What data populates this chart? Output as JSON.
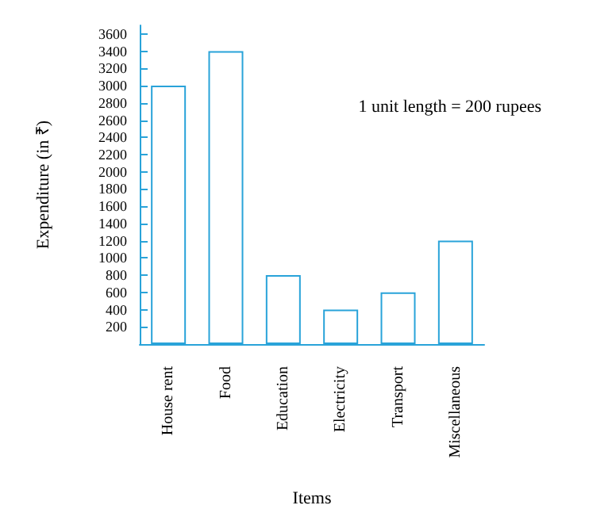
{
  "chart_data": {
    "type": "bar",
    "xlabel": "Items",
    "ylabel": "Expenditure (in ₹)",
    "annotations": [
      "1 unit length = 200 rupees"
    ],
    "categories": [
      "House rent",
      "Food",
      "Education",
      "Electricity",
      "Transport",
      "Miscellaneous"
    ],
    "values": [
      3000,
      3400,
      800,
      400,
      600,
      1200
    ],
    "color": "#29a3d9",
    "ylim": [
      0,
      3700
    ],
    "yticks": [
      200,
      400,
      600,
      800,
      1000,
      1200,
      1400,
      1600,
      1800,
      2000,
      2200,
      2400,
      2600,
      2800,
      3000,
      3200,
      3400,
      3600
    ],
    "grid": false
  }
}
